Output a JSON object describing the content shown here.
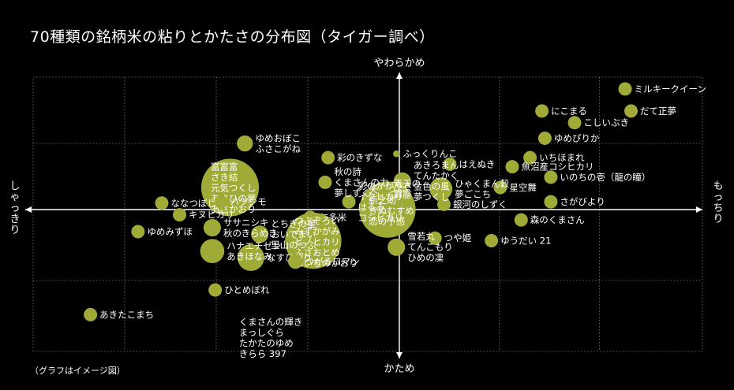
{
  "title": "70種類の銘柄米の粘りとかたさの分布図（タイガー調べ）",
  "note": "（グラフはイメージ図）",
  "chart_data": {
    "type": "scatter",
    "axis_labels": {
      "top": "やわらかめ",
      "bottom": "かため",
      "left": "しゃっきり",
      "right": "もっちり"
    },
    "xlim": [
      -10,
      10
    ],
    "ylim": [
      -10,
      10
    ],
    "grid": true,
    "point_color": "#a0aa37",
    "points": [
      {
        "x": 7.6,
        "y": 9.3,
        "size": 1,
        "label": [
          "ミルキークイーン"
        ]
      },
      {
        "x": 7.8,
        "y": 7.6,
        "size": 1,
        "label": [
          "だて正夢"
        ]
      },
      {
        "x": 4.8,
        "y": 7.6,
        "size": 1,
        "label": [
          "にこまる"
        ]
      },
      {
        "x": 5.9,
        "y": 6.7,
        "size": 1,
        "label": [
          "こしいぶき"
        ]
      },
      {
        "x": 4.9,
        "y": 5.5,
        "size": 1,
        "label": [
          "ゆめぴりか"
        ]
      },
      {
        "x": 4.4,
        "y": 4.0,
        "size": 1,
        "label": [
          "いちほまれ"
        ]
      },
      {
        "x": 3.8,
        "y": 3.3,
        "size": 1,
        "label": [
          "魚沼産コシヒカリ"
        ]
      },
      {
        "x": 5.1,
        "y": 2.5,
        "size": 1,
        "label": [
          "いのちの壱（龍の瞳）"
        ]
      },
      {
        "x": 3.4,
        "y": 1.7,
        "size": 1,
        "label": [
          "星空舞"
        ]
      },
      {
        "x": 5.1,
        "y": 0.6,
        "size": 1,
        "label": [
          "さがびより"
        ]
      },
      {
        "x": 1.7,
        "y": 3.5,
        "size": 1,
        "label": [
          "はえぬき"
        ]
      },
      {
        "x": 1.4,
        "y": 1.6,
        "size": 1.7,
        "label": [
          "ひゃくまん穀",
          "夢ごこち"
        ]
      },
      {
        "x": 1.5,
        "y": 0.4,
        "size": 1,
        "label": [
          "銀河のしずく"
        ]
      },
      {
        "x": 4.1,
        "y": -0.8,
        "size": 1,
        "label": [
          "森のくまさん"
        ]
      },
      {
        "x": 3.1,
        "y": -2.4,
        "size": 1,
        "label": [
          "ゆうだい 21"
        ]
      },
      {
        "x": 1.2,
        "y": -2.2,
        "size": 1,
        "label": [
          "つや姫"
        ]
      },
      {
        "x": 0.1,
        "y": 2.2,
        "size": 1.3,
        "label": [
          "あきろまん",
          "てんたかく",
          "金色の風",
          "夢つくし"
        ]
      },
      {
        "x": -0.1,
        "y": 4.3,
        "size": 0.5,
        "label": [
          "ふっくりんこ"
        ]
      },
      {
        "x": -0.4,
        "y": 0.0,
        "size": 4.2,
        "label": [
          "天のつぶ",
          "新之助",
          "きぬむすめ",
          "恋の予感"
        ]
      },
      {
        "x": -0.5,
        "y": 1.6,
        "size": 1,
        "label": [
          "青天の",
          "霹靂"
        ]
      },
      {
        "x": -1.7,
        "y": 0.6,
        "size": 1,
        "label": [
          "彩のかがやき",
          "イクヒカリ",
          "はるみ",
          "コシヒカリ"
        ]
      },
      {
        "x": -2.4,
        "y": 4.0,
        "size": 1,
        "label": [
          "彩のきずな"
        ]
      },
      {
        "x": -2.5,
        "y": 2.1,
        "size": 1,
        "label": [
          "秋の詩",
          "くまさんの力",
          "夢しずく"
        ]
      },
      {
        "x": -5.2,
        "y": 5.1,
        "size": 1.2,
        "label": [
          "ゆめおぼこ",
          "ふさこがね"
        ]
      },
      {
        "x": -5.7,
        "y": 1.7,
        "size": 4.3,
        "label": [
          "富富富",
          "さき結",
          "元気つくし",
          "あさひの夢",
          "あさかおり"
        ]
      },
      {
        "x": -3.0,
        "y": -0.6,
        "size": 1,
        "label": [
          "仁多米"
        ]
      },
      {
        "x": -2.9,
        "y": -2.4,
        "size": 4.2,
        "label": [
          "つぶぞろい",
          "みずかがみ",
          "ヒノヒカリ",
          "ふさおとめ",
          "あいちのかおり"
        ]
      },
      {
        "x": -4.7,
        "y": -1.9,
        "size": 1.3,
        "label": [
          "とちぎの星",
          "おいでまい",
          "里山のつぶ"
        ]
      },
      {
        "x": -5.0,
        "y": -3.7,
        "size": 2,
        "label": [
          "なすひかり"
        ]
      },
      {
        "x": -3.5,
        "y": -4.0,
        "size": 1.1,
        "label": [
          "つがるロマン"
        ]
      },
      {
        "x": -0.1,
        "y": -2.9,
        "size": 1.3,
        "label": [
          "雪若丸",
          "てんこもり",
          "ひめの凜"
        ]
      },
      {
        "x": -6.0,
        "y": 0.6,
        "size": 1,
        "label": [
          "ハツシモ"
        ]
      },
      {
        "x": -8.0,
        "y": 0.5,
        "size": 1,
        "label": [
          "ななつぼし"
        ]
      },
      {
        "x": -7.4,
        "y": -0.4,
        "size": 1,
        "label": [
          "キヌヒカリ"
        ]
      },
      {
        "x": -6.3,
        "y": -1.4,
        "size": 1.3,
        "label": [
          "ササニシキ",
          "秋のきらめき"
        ]
      },
      {
        "x": -8.8,
        "y": -1.7,
        "size": 1,
        "label": [
          "ゆめみずほ"
        ]
      },
      {
        "x": -6.3,
        "y": -3.2,
        "size": 1.8,
        "label": [
          "ハナエチゼン",
          "あきほなみ"
        ]
      },
      {
        "x": -6.2,
        "y": -6.2,
        "size": 1,
        "label": [
          "ひとめぼれ"
        ]
      },
      {
        "x": -10.4,
        "y": -8.1,
        "size": 1,
        "label": [
          "あきたこまち"
        ]
      },
      {
        "x": -5.4,
        "y": -8.9,
        "size": 0,
        "label": [
          "くまさんの輝き",
          "まっしぐら",
          "たかたのゆめ",
          "きらら 397"
        ]
      }
    ]
  }
}
